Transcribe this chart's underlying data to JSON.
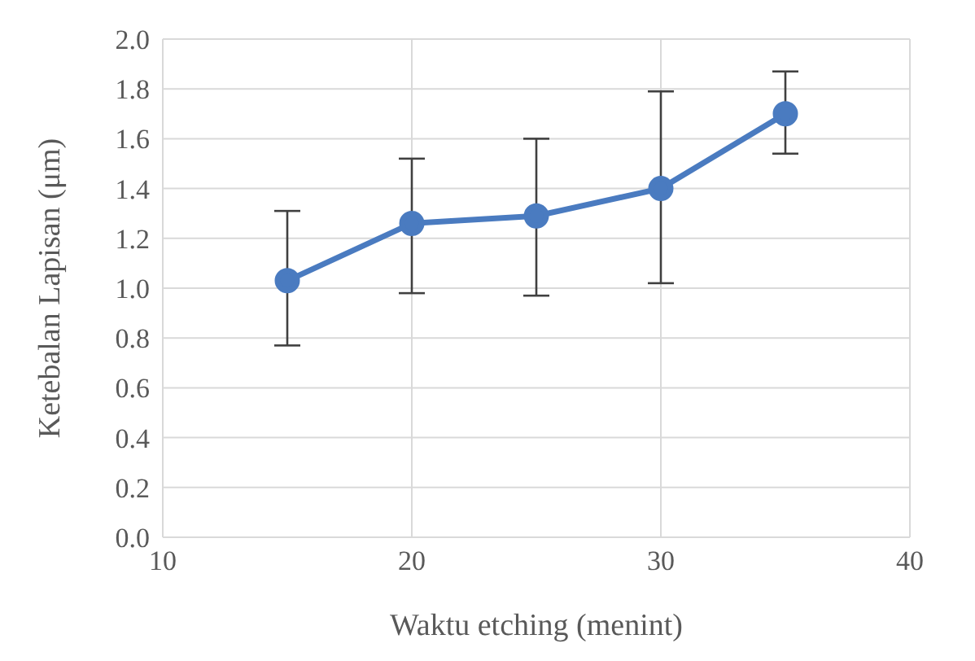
{
  "chart_data": {
    "type": "line",
    "xlabel": "Waktu etching (menint)",
    "ylabel": "Ketebalan Lapisan (μm)",
    "x": [
      15,
      20,
      25,
      30,
      35
    ],
    "series": [
      {
        "color": "#4a7bc0",
        "values": [
          1.03,
          1.26,
          1.29,
          1.4,
          1.7
        ],
        "errors": [
          [
            0.77,
            1.31
          ],
          [
            0.98,
            1.52
          ],
          [
            0.97,
            1.6
          ],
          [
            1.02,
            1.79
          ],
          [
            1.54,
            1.87
          ]
        ]
      }
    ],
    "xlim": [
      10,
      40
    ],
    "xticks": [
      10,
      20,
      30,
      40
    ],
    "ylim": [
      0,
      2
    ],
    "yticks": [
      {
        "value": 0,
        "label": "0.0"
      },
      {
        "value": 0.2,
        "label": "0.2"
      },
      {
        "value": 0.4,
        "label": "0.4"
      },
      {
        "value": 0.6,
        "label": "0.6"
      },
      {
        "value": 0.8,
        "label": "0.8"
      },
      {
        "value": 1,
        "label": "1.0"
      },
      {
        "value": 1.2,
        "label": "1.2"
      },
      {
        "value": 1.4,
        "label": "1.4"
      },
      {
        "value": 1.6,
        "label": "1.6"
      },
      {
        "value": 1.8,
        "label": "1.8"
      },
      {
        "value": 2,
        "label": "2.0"
      }
    ],
    "grid": true,
    "marker": "circle",
    "line_style": "solid"
  }
}
